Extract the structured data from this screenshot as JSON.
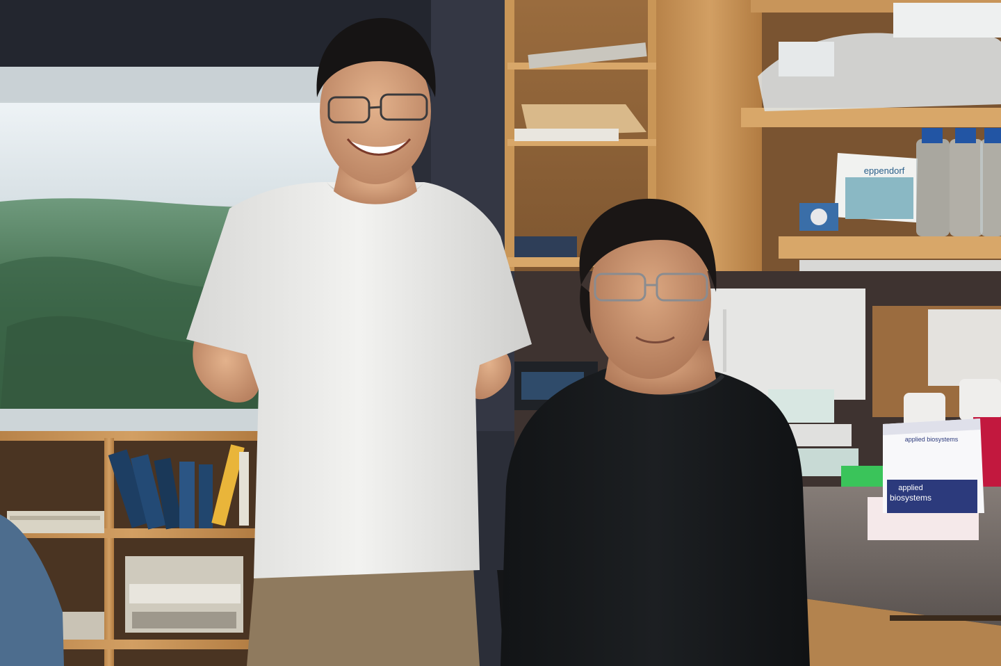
{
  "photo": {
    "labels": {
      "box_brand": "eppendorf",
      "kit_brand_small": "applied biosystems",
      "kit_brand_large_line1": "applied",
      "kit_brand_large_line2": "biosystems"
    }
  }
}
